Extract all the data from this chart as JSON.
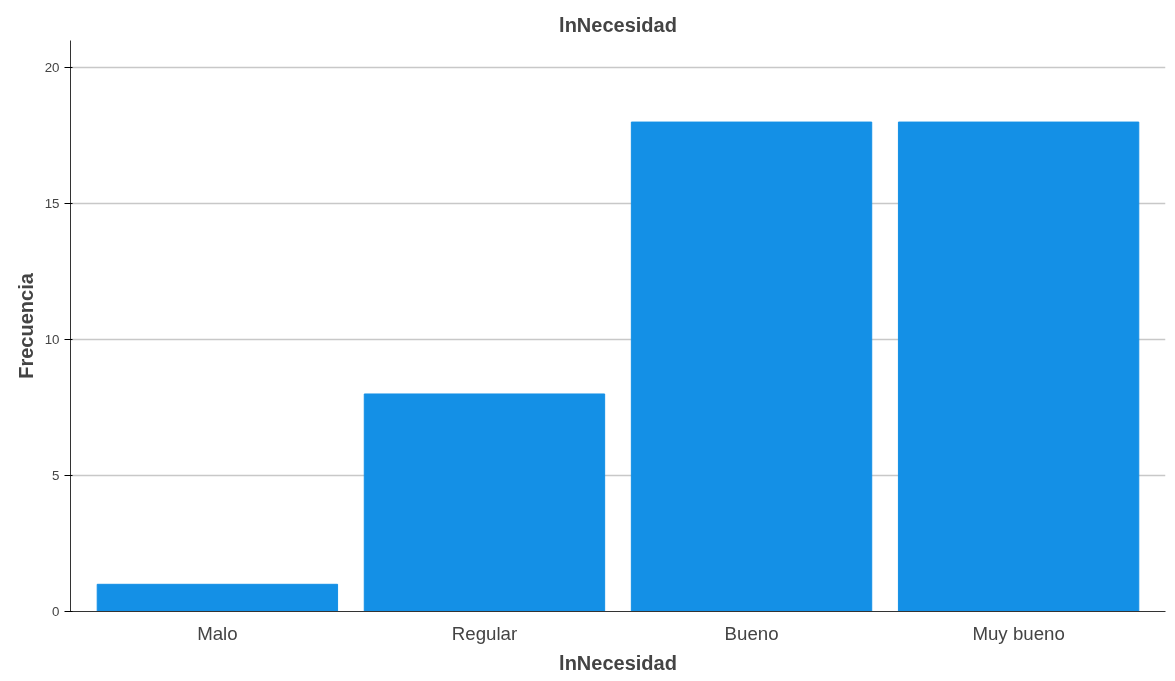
{
  "chart_data": {
    "type": "bar",
    "title": "lnNecesidad",
    "xlabel": "lnNecesidad",
    "ylabel": "Frecuencia",
    "categories": [
      "Malo",
      "Regular",
      "Bueno",
      "Muy bueno"
    ],
    "values": [
      1,
      8,
      18,
      18
    ],
    "color": "#1490e6",
    "ylim": [
      0,
      21
    ],
    "yticks": [
      0,
      5,
      10,
      15,
      20
    ],
    "grid": "y"
  }
}
